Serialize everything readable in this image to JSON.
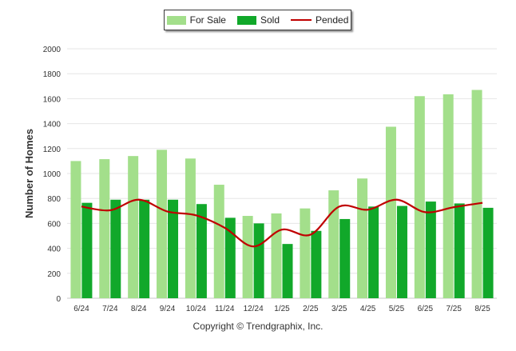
{
  "chart_data": {
    "type": "bar",
    "ylabel": "Number of Homes",
    "xlabel": "",
    "ylim": [
      0,
      2000
    ],
    "yticks": [
      0,
      200,
      400,
      600,
      800,
      1000,
      1200,
      1400,
      1600,
      1800,
      2000
    ],
    "grid": true,
    "legend_position": "top-center",
    "categories": [
      "6/24",
      "7/24",
      "8/24",
      "9/24",
      "10/24",
      "11/24",
      "12/24",
      "1/25",
      "2/25",
      "3/25",
      "4/25",
      "5/25",
      "6/25",
      "7/25",
      "8/25"
    ],
    "series": [
      {
        "name": "For Sale",
        "type": "bar",
        "color": "#a3df8b",
        "values": [
          1100,
          1115,
          1140,
          1190,
          1120,
          910,
          660,
          680,
          720,
          865,
          960,
          1375,
          1620,
          1635,
          1670
        ]
      },
      {
        "name": "Sold",
        "type": "bar",
        "color": "#11a82a",
        "values": [
          765,
          790,
          790,
          790,
          755,
          645,
          600,
          435,
          540,
          635,
          735,
          740,
          775,
          760,
          725
        ]
      },
      {
        "name": "Pended",
        "type": "line",
        "color": "#c00000",
        "values": [
          735,
          705,
          790,
          695,
          665,
          565,
          415,
          550,
          510,
          735,
          710,
          790,
          690,
          730,
          765
        ]
      }
    ]
  },
  "copyright": "Copyright © Trendgraphix, Inc."
}
